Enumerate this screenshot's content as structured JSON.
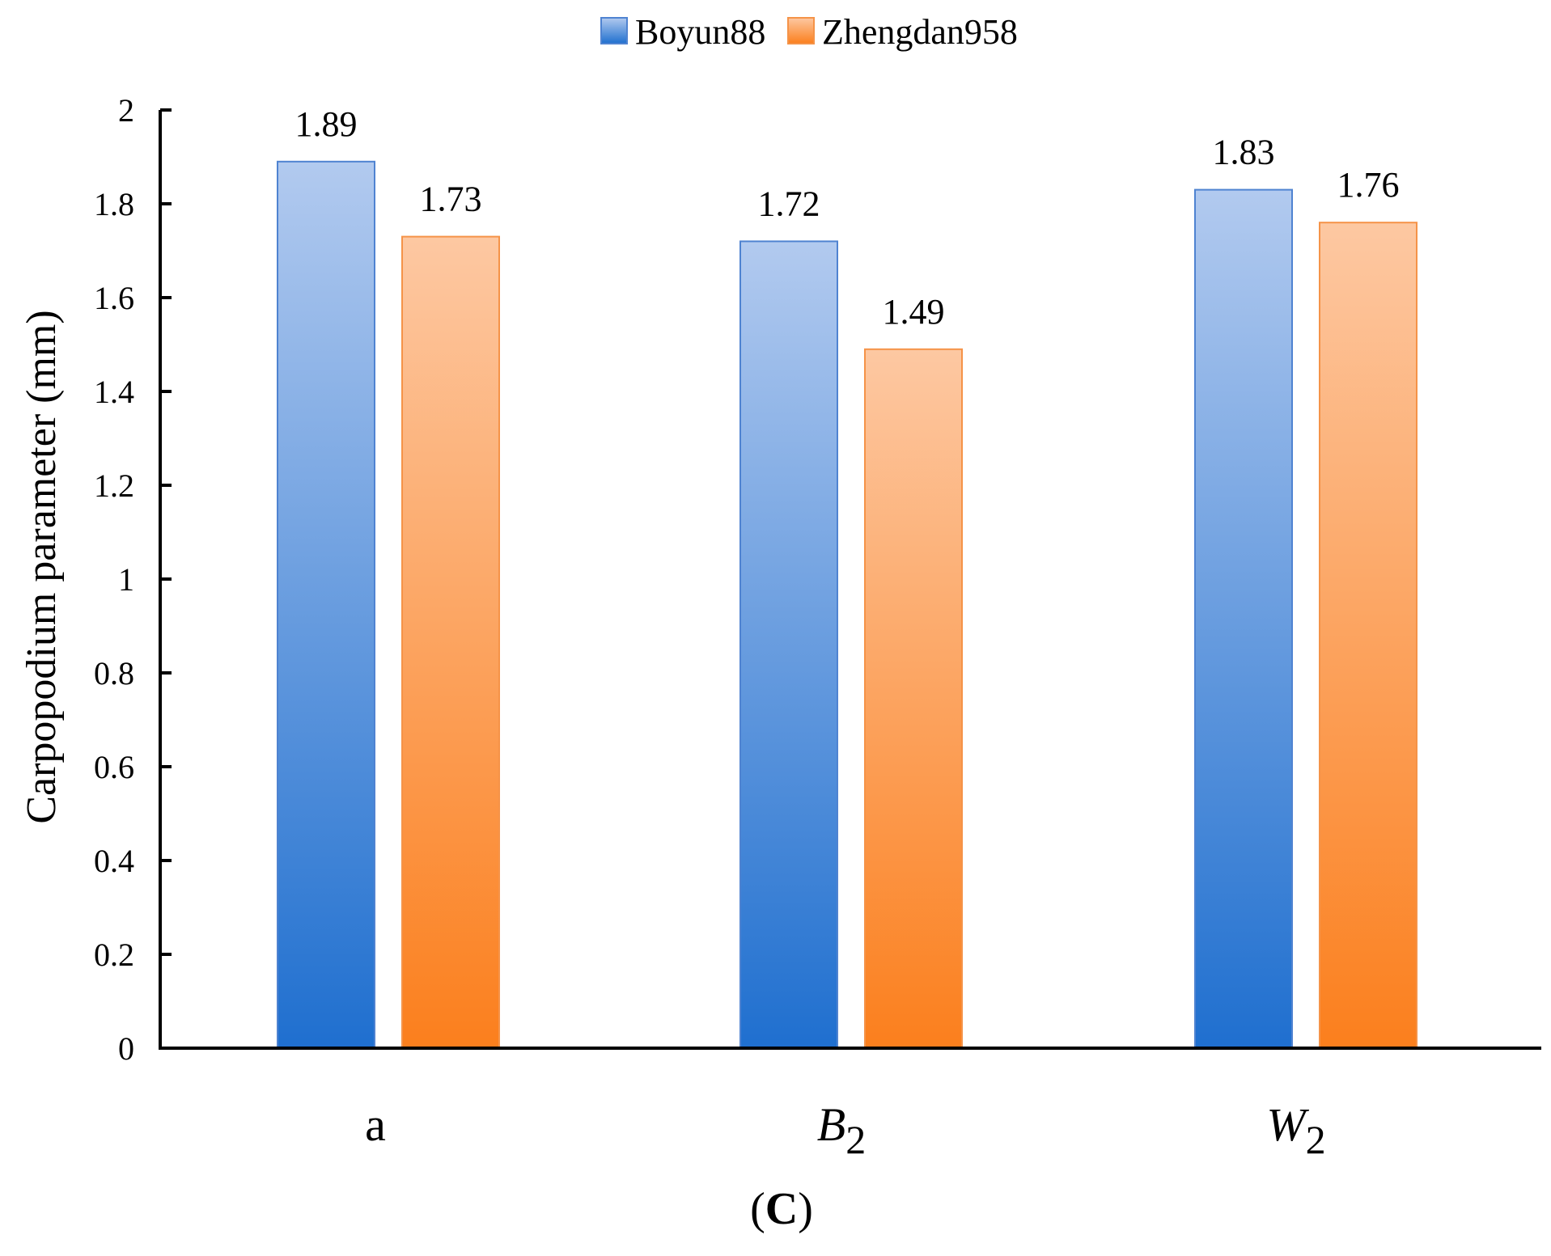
{
  "chart_data": {
    "type": "bar",
    "categories": [
      {
        "main": "a",
        "sub": "",
        "italic": false
      },
      {
        "main": "B",
        "sub": "2",
        "italic": true
      },
      {
        "main": "W",
        "sub": "2",
        "italic": true
      }
    ],
    "series": [
      {
        "name": "Boyun88",
        "values": [
          1.89,
          1.72,
          1.83
        ],
        "value_labels": [
          "1.89",
          "1.72",
          "1.83"
        ],
        "color": "#1f6fcf",
        "light": "#b2caef",
        "border": "#4f83d1"
      },
      {
        "name": "Zhengdan958",
        "values": [
          1.73,
          1.49,
          1.76
        ],
        "value_labels": [
          "1.73",
          "1.49",
          "1.76"
        ],
        "color": "#fb7f1d",
        "light": "#fdc8a2",
        "border": "#f59348"
      }
    ],
    "ylabel": "Carpopodium parameter (mm)",
    "ylim": [
      0,
      2
    ],
    "yticks": [
      "0",
      "0.2",
      "0.4",
      "0.6",
      "0.8",
      "1",
      "1.2",
      "1.4",
      "1.6",
      "1.8",
      "2"
    ],
    "grid": false,
    "legend": "top-center",
    "caption_open": "(",
    "caption_letter": "C",
    "caption_close": ")"
  }
}
